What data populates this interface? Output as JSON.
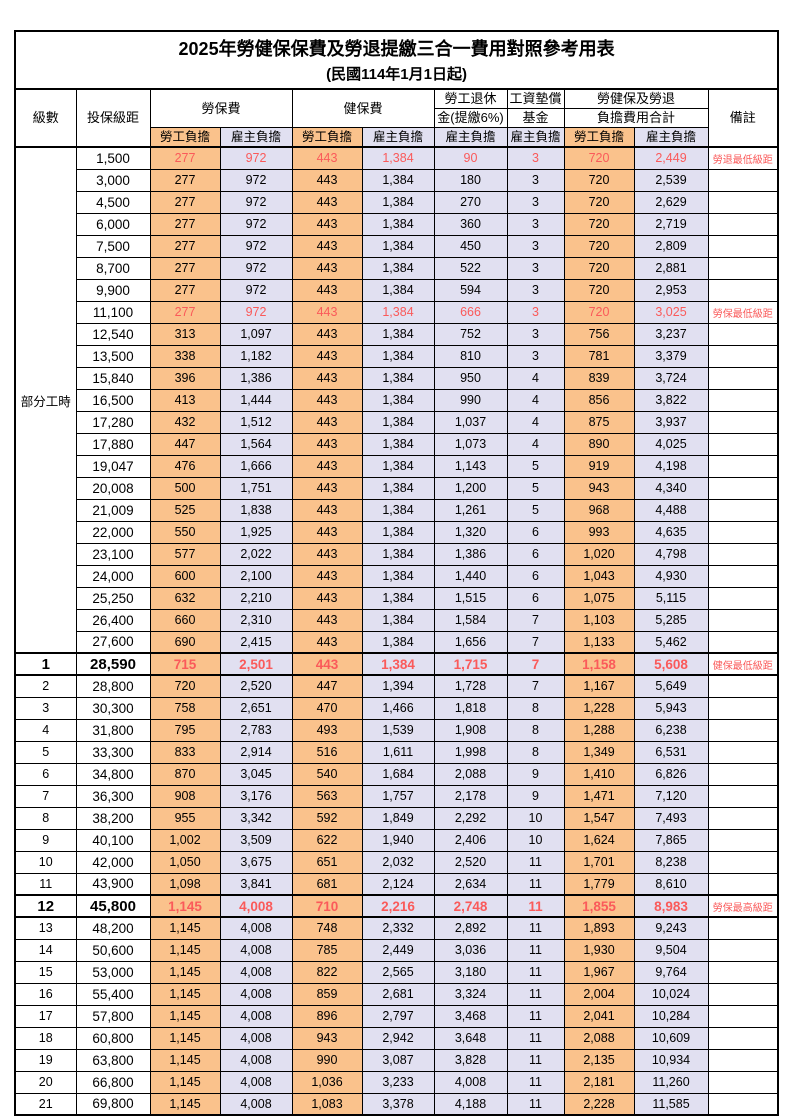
{
  "table": {
    "title": "2025年勞健保保費及勞退提繳三合一費用對照參考用表",
    "subtitle": "(民國114年1月1日起)",
    "header": {
      "level": "級數",
      "bracket": "投保級距",
      "labor_fee": "勞保費",
      "health_fee": "健保費",
      "pension_line1": "勞工退休",
      "pension_line2": "金(提繳6%)",
      "fund_line1": "工資墊償",
      "fund_line2": "基金",
      "total_line1": "勞健保及勞退",
      "total_line2": "負擔費用合計",
      "note": "備註",
      "employee": "勞工負擔",
      "employer": "雇主負擔"
    },
    "part_time_label": "部分工時",
    "colors": {
      "employee_fill": "#FAC28C",
      "employer_fill": "#E1E0F1",
      "highlight_text": "#FA5A5A",
      "border": "#000000"
    },
    "rows": [
      {
        "group": "pt",
        "level": "",
        "bracket": "1,500",
        "values": [
          "277",
          "972",
          "443",
          "1,384",
          "90",
          "3",
          "720",
          "2,449"
        ],
        "note": "勞退最低級距",
        "flags": "r"
      },
      {
        "group": "pt",
        "level": "",
        "bracket": "3,000",
        "values": [
          "277",
          "972",
          "443",
          "1,384",
          "180",
          "3",
          "720",
          "2,539"
        ],
        "note": "",
        "flags": ""
      },
      {
        "group": "pt",
        "level": "",
        "bracket": "4,500",
        "values": [
          "277",
          "972",
          "443",
          "1,384",
          "270",
          "3",
          "720",
          "2,629"
        ],
        "note": "",
        "flags": ""
      },
      {
        "group": "pt",
        "level": "",
        "bracket": "6,000",
        "values": [
          "277",
          "972",
          "443",
          "1,384",
          "360",
          "3",
          "720",
          "2,719"
        ],
        "note": "",
        "flags": ""
      },
      {
        "group": "pt",
        "level": "",
        "bracket": "7,500",
        "values": [
          "277",
          "972",
          "443",
          "1,384",
          "450",
          "3",
          "720",
          "2,809"
        ],
        "note": "",
        "flags": ""
      },
      {
        "group": "pt",
        "level": "",
        "bracket": "8,700",
        "values": [
          "277",
          "972",
          "443",
          "1,384",
          "522",
          "3",
          "720",
          "2,881"
        ],
        "note": "",
        "flags": ""
      },
      {
        "group": "pt",
        "level": "",
        "bracket": "9,900",
        "values": [
          "277",
          "972",
          "443",
          "1,384",
          "594",
          "3",
          "720",
          "2,953"
        ],
        "note": "",
        "flags": ""
      },
      {
        "group": "pt",
        "level": "",
        "bracket": "11,100",
        "values": [
          "277",
          "972",
          "443",
          "1,384",
          "666",
          "3",
          "720",
          "3,025"
        ],
        "note": "勞保最低級距",
        "flags": "r"
      },
      {
        "group": "pt",
        "level": "",
        "bracket": "12,540",
        "values": [
          "313",
          "1,097",
          "443",
          "1,384",
          "752",
          "3",
          "756",
          "3,237"
        ],
        "note": "",
        "flags": ""
      },
      {
        "group": "pt",
        "level": "",
        "bracket": "13,500",
        "values": [
          "338",
          "1,182",
          "443",
          "1,384",
          "810",
          "3",
          "781",
          "3,379"
        ],
        "note": "",
        "flags": ""
      },
      {
        "group": "pt",
        "level": "",
        "bracket": "15,840",
        "values": [
          "396",
          "1,386",
          "443",
          "1,384",
          "950",
          "4",
          "839",
          "3,724"
        ],
        "note": "",
        "flags": ""
      },
      {
        "group": "pt",
        "level": "",
        "bracket": "16,500",
        "values": [
          "413",
          "1,444",
          "443",
          "1,384",
          "990",
          "4",
          "856",
          "3,822"
        ],
        "note": "",
        "flags": ""
      },
      {
        "group": "pt",
        "level": "",
        "bracket": "17,280",
        "values": [
          "432",
          "1,512",
          "443",
          "1,384",
          "1,037",
          "4",
          "875",
          "3,937"
        ],
        "note": "",
        "flags": ""
      },
      {
        "group": "pt",
        "level": "",
        "bracket": "17,880",
        "values": [
          "447",
          "1,564",
          "443",
          "1,384",
          "1,073",
          "4",
          "890",
          "4,025"
        ],
        "note": "",
        "flags": ""
      },
      {
        "group": "pt",
        "level": "",
        "bracket": "19,047",
        "values": [
          "476",
          "1,666",
          "443",
          "1,384",
          "1,143",
          "5",
          "919",
          "4,198"
        ],
        "note": "",
        "flags": ""
      },
      {
        "group": "pt",
        "level": "",
        "bracket": "20,008",
        "values": [
          "500",
          "1,751",
          "443",
          "1,384",
          "1,200",
          "5",
          "943",
          "4,340"
        ],
        "note": "",
        "flags": ""
      },
      {
        "group": "pt",
        "level": "",
        "bracket": "21,009",
        "values": [
          "525",
          "1,838",
          "443",
          "1,384",
          "1,261",
          "5",
          "968",
          "4,488"
        ],
        "note": "",
        "flags": ""
      },
      {
        "group": "pt",
        "level": "",
        "bracket": "22,000",
        "values": [
          "550",
          "1,925",
          "443",
          "1,384",
          "1,320",
          "6",
          "993",
          "4,635"
        ],
        "note": "",
        "flags": ""
      },
      {
        "group": "pt",
        "level": "",
        "bracket": "23,100",
        "values": [
          "577",
          "2,022",
          "443",
          "1,384",
          "1,386",
          "6",
          "1,020",
          "4,798"
        ],
        "note": "",
        "flags": ""
      },
      {
        "group": "pt",
        "level": "",
        "bracket": "24,000",
        "values": [
          "600",
          "2,100",
          "443",
          "1,384",
          "1,440",
          "6",
          "1,043",
          "4,930"
        ],
        "note": "",
        "flags": ""
      },
      {
        "group": "pt",
        "level": "",
        "bracket": "25,250",
        "values": [
          "632",
          "2,210",
          "443",
          "1,384",
          "1,515",
          "6",
          "1,075",
          "5,115"
        ],
        "note": "",
        "flags": ""
      },
      {
        "group": "pt",
        "level": "",
        "bracket": "26,400",
        "values": [
          "660",
          "2,310",
          "443",
          "1,384",
          "1,584",
          "7",
          "1,103",
          "5,285"
        ],
        "note": "",
        "flags": ""
      },
      {
        "group": "pt",
        "level": "",
        "bracket": "27,600",
        "values": [
          "690",
          "2,415",
          "443",
          "1,384",
          "1,656",
          "7",
          "1,133",
          "5,462"
        ],
        "note": "",
        "flags": ""
      },
      {
        "group": "lv",
        "level": "1",
        "bracket": "28,590",
        "values": [
          "715",
          "2,501",
          "443",
          "1,384",
          "1,715",
          "7",
          "1,158",
          "5,608"
        ],
        "note": "健保最低級距",
        "flags": "re"
      },
      {
        "group": "lv",
        "level": "2",
        "bracket": "28,800",
        "values": [
          "720",
          "2,520",
          "447",
          "1,394",
          "1,728",
          "7",
          "1,167",
          "5,649"
        ],
        "note": "",
        "flags": ""
      },
      {
        "group": "lv",
        "level": "3",
        "bracket": "30,300",
        "values": [
          "758",
          "2,651",
          "470",
          "1,466",
          "1,818",
          "8",
          "1,228",
          "5,943"
        ],
        "note": "",
        "flags": ""
      },
      {
        "group": "lv",
        "level": "4",
        "bracket": "31,800",
        "values": [
          "795",
          "2,783",
          "493",
          "1,539",
          "1,908",
          "8",
          "1,288",
          "6,238"
        ],
        "note": "",
        "flags": ""
      },
      {
        "group": "lv",
        "level": "5",
        "bracket": "33,300",
        "values": [
          "833",
          "2,914",
          "516",
          "1,611",
          "1,998",
          "8",
          "1,349",
          "6,531"
        ],
        "note": "",
        "flags": ""
      },
      {
        "group": "lv",
        "level": "6",
        "bracket": "34,800",
        "values": [
          "870",
          "3,045",
          "540",
          "1,684",
          "2,088",
          "9",
          "1,410",
          "6,826"
        ],
        "note": "",
        "flags": ""
      },
      {
        "group": "lv",
        "level": "7",
        "bracket": "36,300",
        "values": [
          "908",
          "3,176",
          "563",
          "1,757",
          "2,178",
          "9",
          "1,471",
          "7,120"
        ],
        "note": "",
        "flags": ""
      },
      {
        "group": "lv",
        "level": "8",
        "bracket": "38,200",
        "values": [
          "955",
          "3,342",
          "592",
          "1,849",
          "2,292",
          "10",
          "1,547",
          "7,493"
        ],
        "note": "",
        "flags": ""
      },
      {
        "group": "lv",
        "level": "9",
        "bracket": "40,100",
        "values": [
          "1,002",
          "3,509",
          "622",
          "1,940",
          "2,406",
          "10",
          "1,624",
          "7,865"
        ],
        "note": "",
        "flags": ""
      },
      {
        "group": "lv",
        "level": "10",
        "bracket": "42,000",
        "values": [
          "1,050",
          "3,675",
          "651",
          "2,032",
          "2,520",
          "11",
          "1,701",
          "8,238"
        ],
        "note": "",
        "flags": ""
      },
      {
        "group": "lv",
        "level": "11",
        "bracket": "43,900",
        "values": [
          "1,098",
          "3,841",
          "681",
          "2,124",
          "2,634",
          "11",
          "1,779",
          "8,610"
        ],
        "note": "",
        "flags": ""
      },
      {
        "group": "lv",
        "level": "12",
        "bracket": "45,800",
        "values": [
          "1,145",
          "4,008",
          "710",
          "2,216",
          "2,748",
          "11",
          "1,855",
          "8,983"
        ],
        "note": "勞保最高級距",
        "flags": "re"
      },
      {
        "group": "lv",
        "level": "13",
        "bracket": "48,200",
        "values": [
          "1,145",
          "4,008",
          "748",
          "2,332",
          "2,892",
          "11",
          "1,893",
          "9,243"
        ],
        "note": "",
        "flags": ""
      },
      {
        "group": "lv",
        "level": "14",
        "bracket": "50,600",
        "values": [
          "1,145",
          "4,008",
          "785",
          "2,449",
          "3,036",
          "11",
          "1,930",
          "9,504"
        ],
        "note": "",
        "flags": ""
      },
      {
        "group": "lv",
        "level": "15",
        "bracket": "53,000",
        "values": [
          "1,145",
          "4,008",
          "822",
          "2,565",
          "3,180",
          "11",
          "1,967",
          "9,764"
        ],
        "note": "",
        "flags": ""
      },
      {
        "group": "lv",
        "level": "16",
        "bracket": "55,400",
        "values": [
          "1,145",
          "4,008",
          "859",
          "2,681",
          "3,324",
          "11",
          "2,004",
          "10,024"
        ],
        "note": "",
        "flags": ""
      },
      {
        "group": "lv",
        "level": "17",
        "bracket": "57,800",
        "values": [
          "1,145",
          "4,008",
          "896",
          "2,797",
          "3,468",
          "11",
          "2,041",
          "10,284"
        ],
        "note": "",
        "flags": ""
      },
      {
        "group": "lv",
        "level": "18",
        "bracket": "60,800",
        "values": [
          "1,145",
          "4,008",
          "943",
          "2,942",
          "3,648",
          "11",
          "2,088",
          "10,609"
        ],
        "note": "",
        "flags": ""
      },
      {
        "group": "lv",
        "level": "19",
        "bracket": "63,800",
        "values": [
          "1,145",
          "4,008",
          "990",
          "3,087",
          "3,828",
          "11",
          "2,135",
          "10,934"
        ],
        "note": "",
        "flags": ""
      },
      {
        "group": "lv",
        "level": "20",
        "bracket": "66,800",
        "values": [
          "1,145",
          "4,008",
          "1,036",
          "3,233",
          "4,008",
          "11",
          "2,181",
          "11,260"
        ],
        "note": "",
        "flags": ""
      },
      {
        "group": "lv",
        "level": "21",
        "bracket": "69,800",
        "values": [
          "1,145",
          "4,008",
          "1,083",
          "3,378",
          "4,188",
          "11",
          "2,228",
          "11,585"
        ],
        "note": "",
        "flags": ""
      }
    ]
  }
}
